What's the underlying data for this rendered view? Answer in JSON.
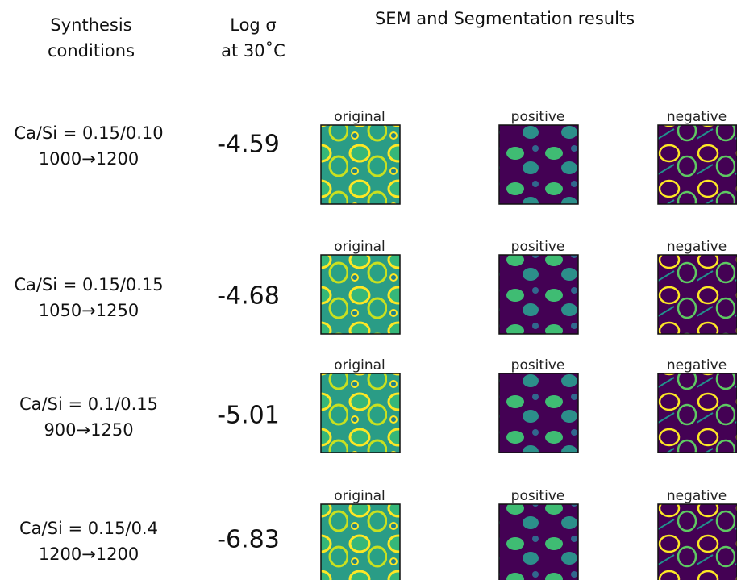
{
  "header": {
    "conditions": [
      "Synthesis",
      "conditions"
    ],
    "log_sigma": [
      "Log σ",
      "at 30˚C"
    ],
    "sem": "SEM and Segmentation results"
  },
  "rows": [
    {
      "ratio": "Ca/Si = 0.15/0.10",
      "temps": "1000→1200",
      "log_sigma": -4.59,
      "panels": [
        "original",
        "positive",
        "negative"
      ]
    },
    {
      "ratio": "Ca/Si = 0.15/0.15",
      "temps": "1050→1250",
      "log_sigma": -4.68,
      "panels": [
        "original",
        "positive",
        "negative"
      ]
    },
    {
      "ratio": "Ca/Si = 0.1/0.15",
      "temps": "900→1250",
      "log_sigma": -5.01,
      "panels": [
        "original",
        "positive",
        "negative"
      ]
    },
    {
      "ratio": "Ca/Si = 0.15/0.4",
      "temps": "1200→1200",
      "log_sigma": -6.83,
      "panels": [
        "original",
        "positive",
        "negative"
      ]
    }
  ]
}
